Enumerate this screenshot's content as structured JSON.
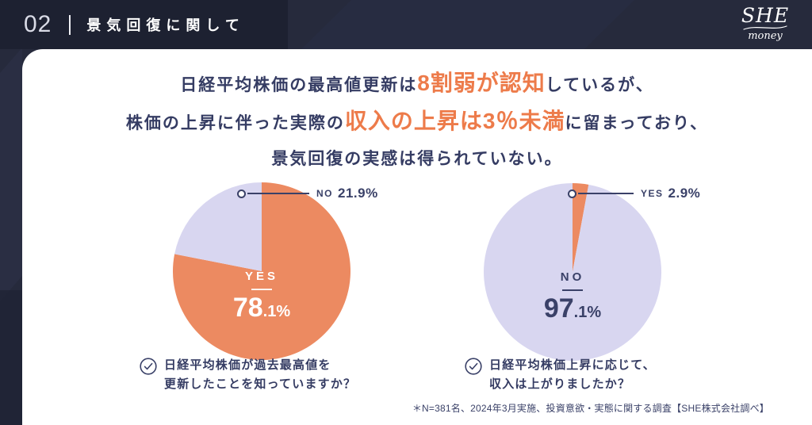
{
  "header": {
    "section_number": "02",
    "section_title": "景気回復に関して",
    "logo_script": "SHE",
    "logo_sub": "money"
  },
  "headline": {
    "l1_pre": "日経平均株価の最高値更新は",
    "l1_em": "8割弱が認知",
    "l1_post": "しているが、",
    "l2_pre": "株価の上昇に伴った実際の",
    "l2_em": "収入の上昇は3％未満",
    "l2_post": "に留まっており、",
    "l3": "景気回復の実感は得られていない。"
  },
  "chart_data": [
    {
      "type": "pie",
      "title": "日経平均株価が過去最高値を更新したことを知っていますか？",
      "question_lines": [
        "日経平均株価が過去最高値を",
        "更新したことを知っていますか？"
      ],
      "start_angle": "top",
      "direction": "clockwise",
      "slices": [
        {
          "label": "YES",
          "value": 78.1,
          "color": "#EC8A61"
        },
        {
          "label": "NO",
          "value": 21.9,
          "color": "#D8D6F0"
        }
      ],
      "center": {
        "label": "YES",
        "value_main": "78",
        "value_rest": ".1%"
      },
      "callout": {
        "label": "NO",
        "value": "21.9%"
      }
    },
    {
      "type": "pie",
      "title": "日経平均株価上昇に応じて、収入は上がりましたか？",
      "question_lines": [
        "日経平均株価上昇に応じて、",
        "収入は上がりましたか？"
      ],
      "start_angle": "top",
      "direction": "clockwise",
      "slices": [
        {
          "label": "YES",
          "value": 2.9,
          "color": "#EC8A61"
        },
        {
          "label": "NO",
          "value": 97.1,
          "color": "#D8D6F0"
        }
      ],
      "center": {
        "label": "NO",
        "value_main": "97",
        "value_rest": ".1%"
      },
      "callout": {
        "label": "YES",
        "value": "2.9%"
      }
    }
  ],
  "footnote": "＊N=381名、2024年3月実施、投資意欲・実態に関する調査【SHE株式会社調べ】",
  "colors": {
    "background": "#262A3C",
    "header_block": "#1D2131",
    "accent_orange": "#EC8A61",
    "emphasis_orange": "#ED7B4A",
    "lavender": "#D8D6F0",
    "navy_text": "#3A4168"
  }
}
